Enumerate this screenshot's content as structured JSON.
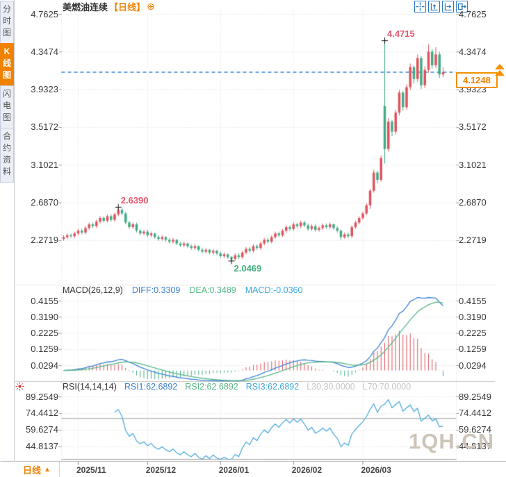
{
  "window": {
    "title": "美燃油连续",
    "period_tag": "【日线】",
    "add_icon": "⊕"
  },
  "sidebar": {
    "items": [
      {
        "label": "分时图",
        "active": false
      },
      {
        "label": "K线图",
        "active": true
      },
      {
        "label": "闪电图",
        "active": false
      },
      {
        "label": "合约资料",
        "active": false
      }
    ]
  },
  "toolbar": {
    "icons": [
      "crosshair",
      "scale-y-axis",
      "scale-x-axis",
      "pan-to-latest"
    ]
  },
  "colors": {
    "up": "#e0525c",
    "down": "#42ab85",
    "diff_line": "#3b82d4",
    "dea_line": "#55b787",
    "rsi_line": "#41a6d9",
    "accent": "#f18101",
    "dashed_price_line": "#2b7fd9",
    "annotation_high": "#e6566e",
    "annotation_low": "#45b07f",
    "grid": "#dcdcdc",
    "level_line": "#a3a3a3"
  },
  "macd": {
    "header": {
      "name": "MACD(26,12,9)",
      "diff": "DIFF:0.3309",
      "dea": "DEA:0.3489",
      "macd": "MACD:-0.0360"
    }
  },
  "rsi": {
    "header": {
      "name": "RSI(14,14,14)",
      "r1": "RSI1:62.6892",
      "r2": "RSI2:62.6892",
      "r3": "RSI3:62.6892",
      "l30": "L30:30.0000",
      "l70": "L70:70.0000"
    }
  },
  "bottom_bar": {
    "period_label": "日线",
    "arrow": "▲"
  },
  "price_marker": {
    "value": "4.1248"
  },
  "watermark": "1QH.CN",
  "chart_data": {
    "type": "candlestick",
    "instrument": "美燃油连续",
    "period": "日线",
    "y_axis_ticks_main": [
      4.7625,
      4.3474,
      3.9323,
      3.5172,
      3.1021,
      2.687,
      2.2719
    ],
    "y_axis_ticks_macd": [
      0.4155,
      0.319,
      0.2225,
      0.1259,
      0.0294
    ],
    "y_axis_ticks_rsi": [
      89.2549,
      74.4412,
      59.6274,
      44.8137
    ],
    "x_ticks": [
      {
        "label": "2025/11",
        "index": 4
      },
      {
        "label": "2025/12",
        "index": 23
      },
      {
        "label": "2026/01",
        "index": 43
      },
      {
        "label": "2026/02",
        "index": 63
      },
      {
        "label": "2026/03",
        "index": 82
      }
    ],
    "annotations": {
      "spike_high": {
        "index": 88,
        "label": "4.4715",
        "value": 4.4715,
        "side": "high"
      },
      "swing_high": {
        "index": 15,
        "label": "2.6390",
        "value": 2.639,
        "side": "high"
      },
      "swing_low": {
        "index": 46,
        "label": "2.0469",
        "value": 2.0469,
        "side": "low"
      },
      "last_price": 4.1248
    },
    "indicators": {
      "macd": {
        "params": [
          26,
          12,
          9
        ],
        "diff": 0.3309,
        "dea": 0.3489,
        "macd": -0.036
      },
      "rsi": {
        "params": [
          14,
          14,
          14
        ],
        "rsi1": 62.6892,
        "rsi2": 62.6892,
        "rsi3": 62.6892,
        "l30": 30.0,
        "l70": 70.0
      }
    },
    "candles": [
      [
        2.29,
        2.33,
        2.27,
        2.31
      ],
      [
        2.31,
        2.35,
        2.29,
        2.33
      ],
      [
        2.33,
        2.35,
        2.3,
        2.32
      ],
      [
        2.32,
        2.37,
        2.3,
        2.35
      ],
      [
        2.35,
        2.4,
        2.33,
        2.38
      ],
      [
        2.38,
        2.4,
        2.34,
        2.36
      ],
      [
        2.36,
        2.43,
        2.34,
        2.41
      ],
      [
        2.41,
        2.47,
        2.39,
        2.45
      ],
      [
        2.45,
        2.47,
        2.41,
        2.43
      ],
      [
        2.43,
        2.5,
        2.41,
        2.48
      ],
      [
        2.48,
        2.54,
        2.46,
        2.52
      ],
      [
        2.52,
        2.54,
        2.47,
        2.49
      ],
      [
        2.49,
        2.56,
        2.47,
        2.54
      ],
      [
        2.54,
        2.56,
        2.48,
        2.5
      ],
      [
        2.5,
        2.58,
        2.48,
        2.56
      ],
      [
        2.56,
        2.639,
        2.54,
        2.61
      ],
      [
        2.61,
        2.63,
        2.55,
        2.57
      ],
      [
        2.57,
        2.59,
        2.45,
        2.47
      ],
      [
        2.47,
        2.49,
        2.4,
        2.42
      ],
      [
        2.42,
        2.47,
        2.4,
        2.45
      ],
      [
        2.45,
        2.47,
        2.36,
        2.38
      ],
      [
        2.38,
        2.4,
        2.33,
        2.35
      ],
      [
        2.35,
        2.39,
        2.33,
        2.37
      ],
      [
        2.37,
        2.39,
        2.31,
        2.33
      ],
      [
        2.33,
        2.37,
        2.31,
        2.35
      ],
      [
        2.35,
        2.36,
        2.29,
        2.31
      ],
      [
        2.31,
        2.33,
        2.27,
        2.29
      ],
      [
        2.29,
        2.33,
        2.27,
        2.31
      ],
      [
        2.31,
        2.32,
        2.26,
        2.28
      ],
      [
        2.28,
        2.3,
        2.24,
        2.26
      ],
      [
        2.26,
        2.3,
        2.24,
        2.28
      ],
      [
        2.28,
        2.29,
        2.22,
        2.24
      ],
      [
        2.24,
        2.26,
        2.2,
        2.22
      ],
      [
        2.22,
        2.26,
        2.2,
        2.24
      ],
      [
        2.24,
        2.25,
        2.19,
        2.21
      ],
      [
        2.21,
        2.23,
        2.17,
        2.19
      ],
      [
        2.19,
        2.23,
        2.17,
        2.21
      ],
      [
        2.21,
        2.22,
        2.15,
        2.17
      ],
      [
        2.17,
        2.19,
        2.13,
        2.15
      ],
      [
        2.15,
        2.19,
        2.13,
        2.17
      ],
      [
        2.17,
        2.18,
        2.12,
        2.14
      ],
      [
        2.14,
        2.18,
        2.12,
        2.16
      ],
      [
        2.16,
        2.17,
        2.11,
        2.13
      ],
      [
        2.13,
        2.15,
        2.08,
        2.1
      ],
      [
        2.1,
        2.14,
        2.08,
        2.12
      ],
      [
        2.12,
        2.13,
        2.07,
        2.09
      ],
      [
        2.09,
        2.1,
        2.0469,
        2.07
      ],
      [
        2.07,
        2.13,
        2.05,
        2.11
      ],
      [
        2.11,
        2.13,
        2.07,
        2.09
      ],
      [
        2.09,
        2.16,
        2.07,
        2.14
      ],
      [
        2.14,
        2.2,
        2.12,
        2.18
      ],
      [
        2.18,
        2.2,
        2.14,
        2.16
      ],
      [
        2.16,
        2.23,
        2.14,
        2.21
      ],
      [
        2.21,
        2.23,
        2.17,
        2.19
      ],
      [
        2.19,
        2.26,
        2.17,
        2.24
      ],
      [
        2.24,
        2.3,
        2.22,
        2.28
      ],
      [
        2.28,
        2.3,
        2.24,
        2.26
      ],
      [
        2.26,
        2.33,
        2.24,
        2.31
      ],
      [
        2.31,
        2.37,
        2.29,
        2.35
      ],
      [
        2.35,
        2.37,
        2.31,
        2.33
      ],
      [
        2.33,
        2.4,
        2.31,
        2.38
      ],
      [
        2.38,
        2.44,
        2.36,
        2.42
      ],
      [
        2.42,
        2.44,
        2.38,
        2.4
      ],
      [
        2.4,
        2.47,
        2.38,
        2.45
      ],
      [
        2.45,
        2.47,
        2.41,
        2.43
      ],
      [
        2.43,
        2.49,
        2.41,
        2.47
      ],
      [
        2.47,
        2.49,
        2.42,
        2.44
      ],
      [
        2.44,
        2.46,
        2.38,
        2.4
      ],
      [
        2.4,
        2.45,
        2.38,
        2.43
      ],
      [
        2.43,
        2.45,
        2.37,
        2.39
      ],
      [
        2.39,
        2.43,
        2.37,
        2.41
      ],
      [
        2.41,
        2.46,
        2.39,
        2.44
      ],
      [
        2.44,
        2.46,
        2.4,
        2.42
      ],
      [
        2.42,
        2.47,
        2.4,
        2.45
      ],
      [
        2.45,
        2.46,
        2.39,
        2.41
      ],
      [
        2.41,
        2.43,
        2.36,
        2.38
      ],
      [
        2.38,
        2.39,
        2.28,
        2.31
      ],
      [
        2.31,
        2.36,
        2.29,
        2.34
      ],
      [
        2.34,
        2.36,
        2.3,
        2.32
      ],
      [
        2.32,
        2.44,
        2.3,
        2.42
      ],
      [
        2.42,
        2.49,
        2.4,
        2.47
      ],
      [
        2.47,
        2.54,
        2.45,
        2.52
      ],
      [
        2.52,
        2.59,
        2.5,
        2.57
      ],
      [
        2.57,
        2.68,
        2.55,
        2.66
      ],
      [
        2.66,
        2.84,
        2.62,
        2.82
      ],
      [
        2.82,
        3.05,
        2.8,
        3.02
      ],
      [
        3.02,
        3.04,
        2.9,
        2.94
      ],
      [
        2.94,
        3.21,
        2.92,
        3.18
      ],
      [
        3.75,
        4.4715,
        3.12,
        3.28
      ],
      [
        3.28,
        3.62,
        3.25,
        3.58
      ],
      [
        3.58,
        3.6,
        3.42,
        3.47
      ],
      [
        3.47,
        3.71,
        3.44,
        3.68
      ],
      [
        3.68,
        3.93,
        3.65,
        3.9
      ],
      [
        3.9,
        3.92,
        3.7,
        3.74
      ],
      [
        3.74,
        3.99,
        3.71,
        3.96
      ],
      [
        3.96,
        4.22,
        3.93,
        4.18
      ],
      [
        4.18,
        4.2,
        4.0,
        4.05
      ],
      [
        4.05,
        4.32,
        4.02,
        4.28
      ],
      [
        4.28,
        4.3,
        3.94,
        3.98
      ],
      [
        3.98,
        4.19,
        3.95,
        4.15
      ],
      [
        4.15,
        4.43,
        4.12,
        4.35
      ],
      [
        4.35,
        4.38,
        4.16,
        4.2
      ],
      [
        4.2,
        4.4,
        4.17,
        4.32
      ],
      [
        4.32,
        4.35,
        4.06,
        4.1
      ],
      [
        4.1,
        4.18,
        4.07,
        4.1248
      ]
    ]
  }
}
